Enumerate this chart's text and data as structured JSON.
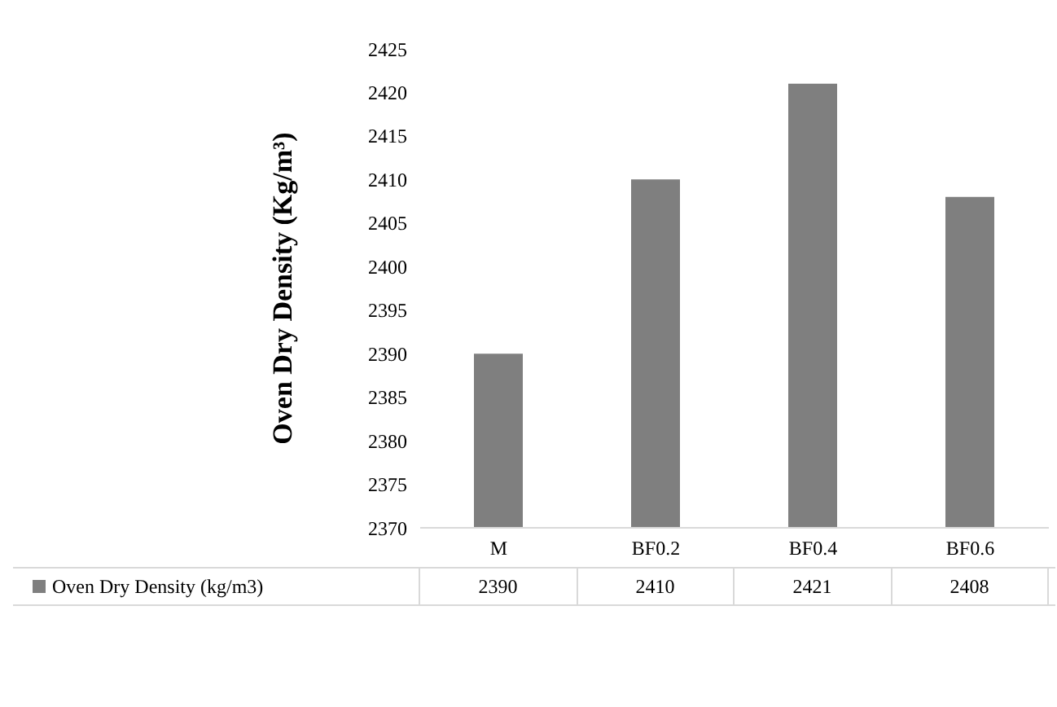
{
  "chart_data": {
    "type": "bar",
    "ylabel": "Oven Dry Density (Kg/m³)",
    "categories": [
      "M",
      "BF0.2",
      "BF0.4",
      "BF0.6"
    ],
    "series": [
      {
        "name": "Oven Dry Density (kg/m3)",
        "color": "#7f7f7f",
        "values": [
          2390,
          2410,
          2421,
          2408
        ]
      }
    ],
    "ylim": [
      2370,
      2425
    ],
    "yticks": [
      2370,
      2375,
      2380,
      2385,
      2390,
      2395,
      2400,
      2405,
      2410,
      2415,
      2420,
      2425
    ],
    "data_labels": true,
    "legend": "bottom",
    "grid": false
  }
}
